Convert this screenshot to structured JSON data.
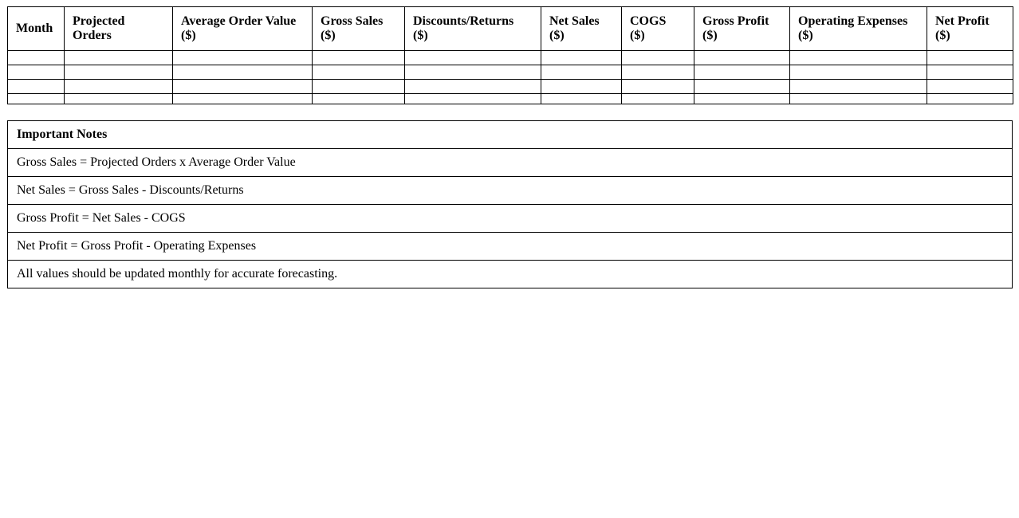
{
  "colors": {
    "background": "#ffffff",
    "border": "#000000",
    "text": "#000000"
  },
  "forecast_table": {
    "headers": [
      {
        "name": "month",
        "lines": [
          "Month"
        ]
      },
      {
        "name": "projected-orders",
        "lines": [
          "Projected",
          "Orders"
        ]
      },
      {
        "name": "average-order-value",
        "lines": [
          "Average Order Value",
          "($)"
        ]
      },
      {
        "name": "gross-sales",
        "lines": [
          "Gross Sales",
          "($)"
        ]
      },
      {
        "name": "discounts-returns",
        "lines": [
          "Discounts/Returns",
          "($)"
        ]
      },
      {
        "name": "net-sales",
        "lines": [
          "Net Sales",
          "($)"
        ]
      },
      {
        "name": "cogs",
        "lines": [
          "COGS",
          "($)"
        ]
      },
      {
        "name": "gross-profit",
        "lines": [
          "Gross Profit",
          "($)"
        ]
      },
      {
        "name": "operating-expenses",
        "lines": [
          "Operating Expenses",
          "($)"
        ]
      },
      {
        "name": "net-profit",
        "lines": [
          "Net Profit",
          "($)"
        ]
      }
    ],
    "empty_row_count": 4,
    "column_count": 10
  },
  "notes_table": {
    "title": "Important Notes",
    "items": [
      "Gross Sales = Projected Orders x Average Order Value",
      "Net Sales = Gross Sales - Discounts/Returns",
      "Gross Profit = Net Sales - COGS",
      "Net Profit = Gross Profit - Operating Expenses",
      "All values should be updated monthly for accurate forecasting."
    ]
  }
}
